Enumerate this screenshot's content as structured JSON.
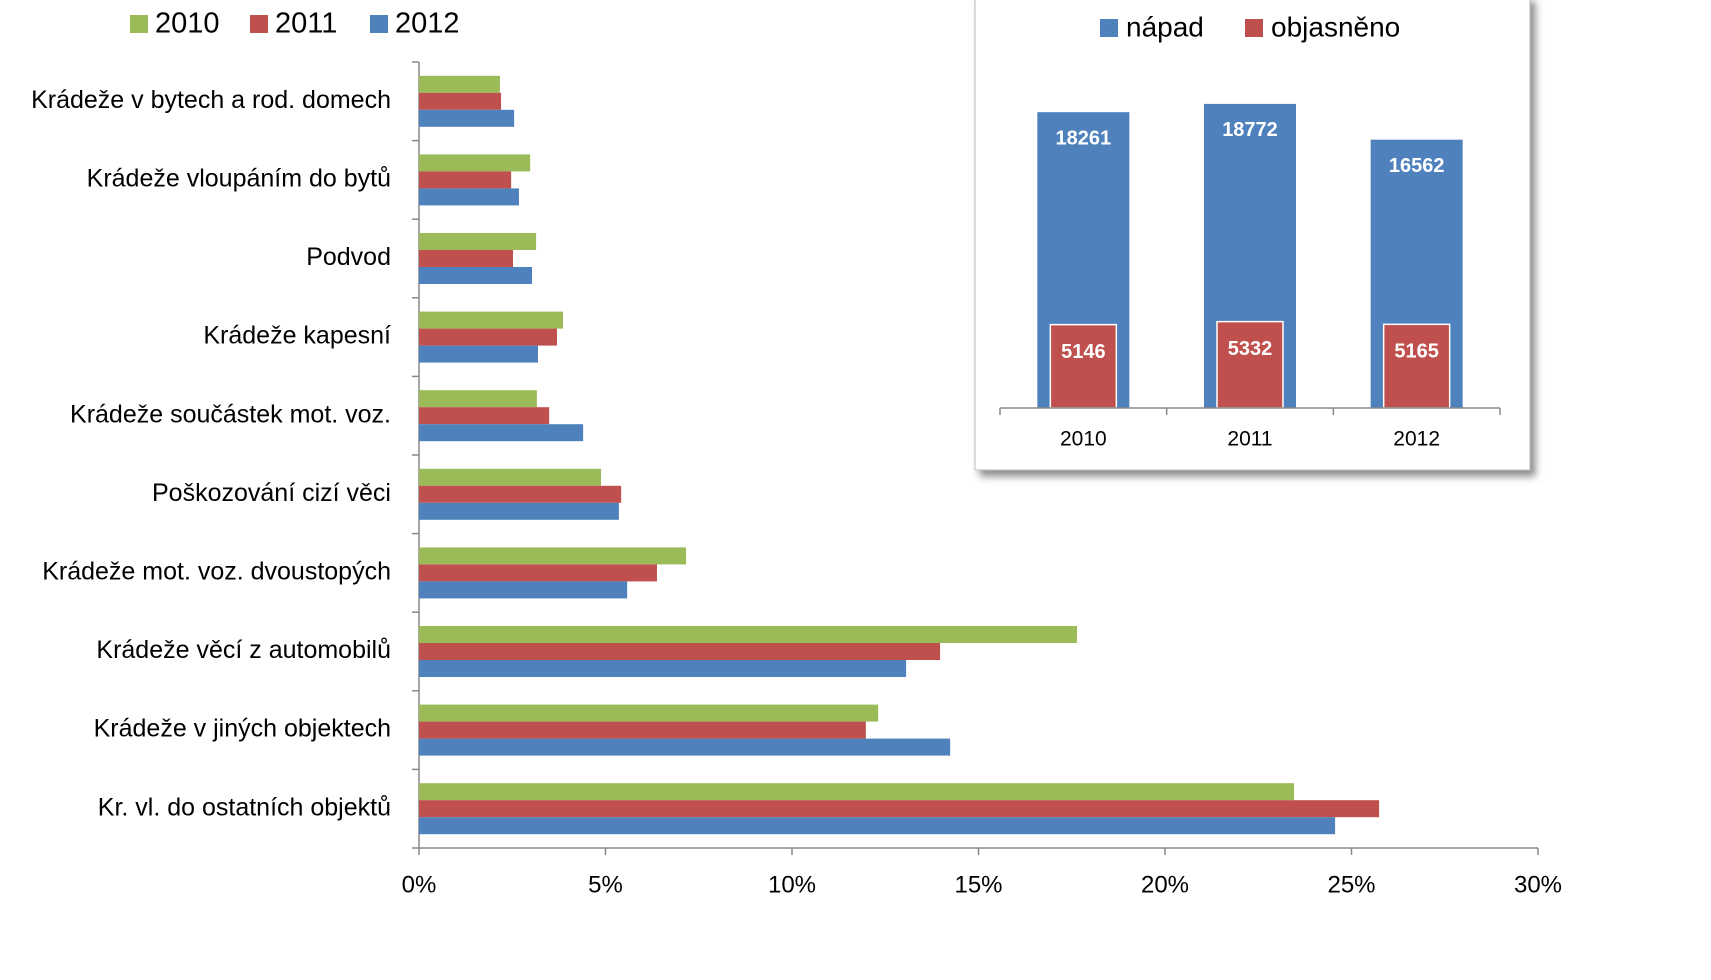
{
  "chart_data": [
    {
      "type": "hbar",
      "categories": [
        "Krádeže v bytech a rod. domech",
        "Krádeže vloupáním do bytů",
        "Podvod",
        "Krádeže kapesní",
        "Krádeže součástek mot. voz.",
        "Poškozování cizí věci",
        "Krádeže mot. voz. dvoustopých",
        "Krádeže věcí z automobilů",
        "Krádeže v jiných objektech",
        "Kr. vl. do ostatních objektů"
      ],
      "series": [
        {
          "name": "2010",
          "color": "#9bbb59",
          "values": [
            2.17,
            2.98,
            3.14,
            3.86,
            3.16,
            4.88,
            7.16,
            17.64,
            12.31,
            23.46
          ]
        },
        {
          "name": "2011",
          "color": "#c0504d",
          "values": [
            2.2,
            2.47,
            2.52,
            3.7,
            3.49,
            5.42,
            6.38,
            13.97,
            11.98,
            25.74
          ]
        },
        {
          "name": "2012",
          "color": "#4f81bd",
          "values": [
            2.55,
            2.68,
            3.03,
            3.19,
            4.4,
            5.36,
            5.58,
            13.06,
            14.24,
            24.56
          ]
        }
      ],
      "xlim": [
        0,
        30
      ],
      "xticks": [
        {
          "value": 0,
          "label": "0%"
        },
        {
          "value": 5,
          "label": "5%"
        },
        {
          "value": 10,
          "label": "10%"
        },
        {
          "value": 15,
          "label": "15%"
        },
        {
          "value": 20,
          "label": "20%"
        },
        {
          "value": 25,
          "label": "25%"
        },
        {
          "value": 30,
          "label": "30%"
        }
      ],
      "legend": "top-left"
    },
    {
      "type": "bar",
      "overlap": true,
      "categories": [
        "2010",
        "2011",
        "2012"
      ],
      "series": [
        {
          "name": "nápad",
          "color": "#4f81bd",
          "values": [
            18261,
            18772,
            16562
          ]
        },
        {
          "name": "objasněno",
          "color": "#c0504d",
          "values": [
            5146,
            5332,
            5165
          ]
        }
      ],
      "ylim": [
        0,
        20000
      ],
      "legend": "top"
    }
  ]
}
